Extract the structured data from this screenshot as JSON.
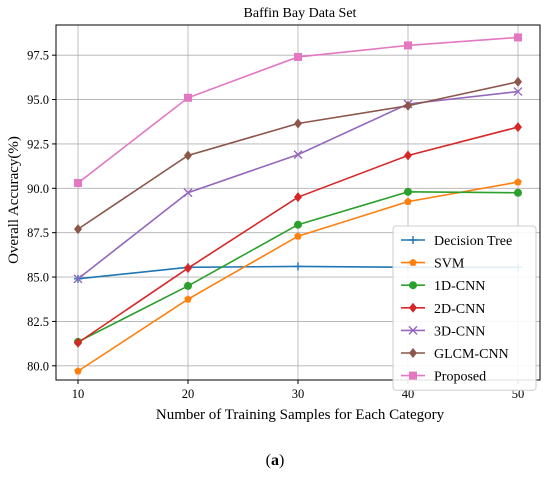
{
  "chart_data": {
    "type": "line",
    "title": "Baffin Bay Data Set",
    "xlabel": "Number of Training Samples for Each Category",
    "ylabel": "Overall Accuracy(%)",
    "x": [
      10,
      20,
      30,
      40,
      50
    ],
    "xlim": [
      8,
      52
    ],
    "ylim": [
      79.2,
      99.2
    ],
    "xticks": [
      "10",
      "20",
      "30",
      "40",
      "50"
    ],
    "yticks": [
      "80.0",
      "82.5",
      "85.0",
      "87.5",
      "90.0",
      "92.5",
      "95.0",
      "97.5"
    ],
    "grid": true,
    "legend_position": "lower-right",
    "series": [
      {
        "name": "Decision Tree",
        "color": "#1f77b4",
        "marker": "plus",
        "values": [
          84.9,
          85.55,
          85.6,
          85.55,
          85.55
        ]
      },
      {
        "name": "SVM",
        "color": "#ff7f0e",
        "marker": "pentagon",
        "values": [
          79.7,
          83.75,
          87.3,
          89.25,
          90.35
        ]
      },
      {
        "name": "1D-CNN",
        "color": "#2ca02c",
        "marker": "circle",
        "values": [
          81.35,
          84.5,
          87.95,
          89.8,
          89.75
        ]
      },
      {
        "name": "2D-CNN",
        "color": "#d62728",
        "marker": "diamond",
        "values": [
          81.3,
          85.5,
          89.5,
          91.85,
          93.45
        ]
      },
      {
        "name": "3D-CNN",
        "color": "#9467bd",
        "marker": "x",
        "values": [
          84.9,
          89.75,
          91.9,
          94.75,
          95.45
        ]
      },
      {
        "name": "GLCM-CNN",
        "color": "#8c564b",
        "marker": "diamond",
        "values": [
          87.7,
          91.85,
          93.65,
          94.65,
          96.0
        ]
      },
      {
        "name": "Proposed",
        "color": "#e377c2",
        "marker": "square",
        "values": [
          90.3,
          95.1,
          97.4,
          98.05,
          98.5
        ]
      }
    ]
  },
  "caption": {
    "open": "(",
    "label": "a",
    "close": ")"
  }
}
